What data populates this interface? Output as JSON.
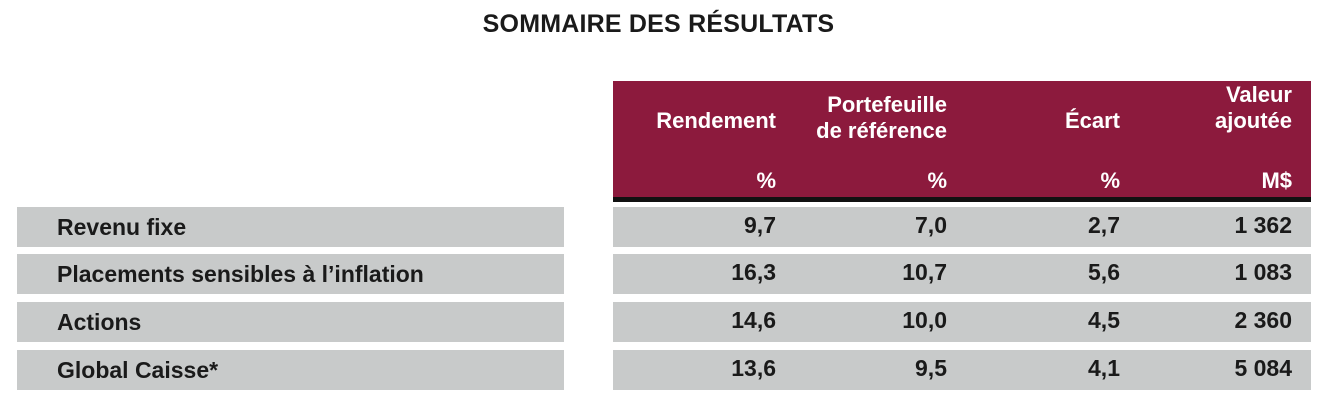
{
  "title": "SOMMAIRE DES RÉSULTATS",
  "columns": [
    {
      "line1": "",
      "line2": "Rendement",
      "unit": "%"
    },
    {
      "line1": "Portefeuille",
      "line2": "de référence",
      "unit": "%"
    },
    {
      "line1": "",
      "line2": "Écart",
      "unit": "%"
    },
    {
      "line1": "Valeur",
      "line2": "ajoutée",
      "unit": "M$"
    }
  ],
  "rows": [
    {
      "label": "Revenu fixe",
      "values": [
        "9,7",
        "7,0",
        "2,7",
        "1 362"
      ]
    },
    {
      "label": "Placements sensibles à l’inflation",
      "values": [
        "16,3",
        "10,7",
        "5,6",
        "1 083"
      ]
    },
    {
      "label": "Actions",
      "values": [
        "14,6",
        "10,0",
        "4,5",
        "2 360"
      ]
    },
    {
      "label": "Global Caisse*",
      "values": [
        "13,6",
        "9,5",
        "4,1",
        "5 084"
      ]
    }
  ],
  "colors": {
    "header_background": "#8c1a3d",
    "row_background": "#c8caca"
  }
}
